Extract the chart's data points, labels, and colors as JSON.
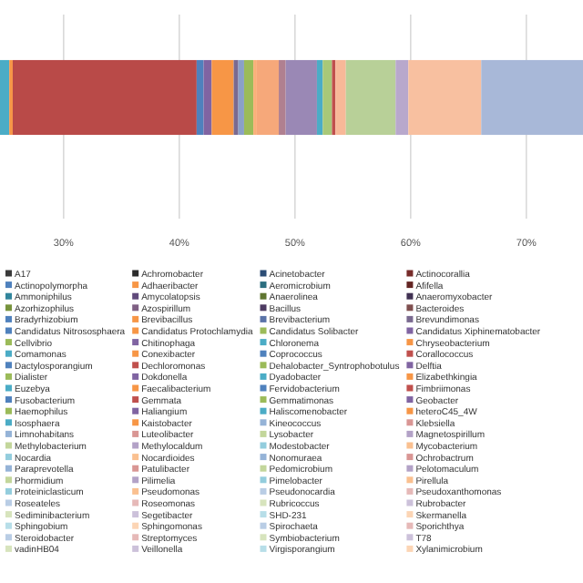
{
  "chart_data": {
    "type": "bar",
    "orientation": "horizontal",
    "categories": [
      null
    ],
    "xlim": [
      24.5,
      74.9
    ],
    "xticks": [
      {
        "value": 30,
        "label": "30%"
      },
      {
        "value": 40,
        "label": "40%"
      },
      {
        "value": 50,
        "label": "50%"
      },
      {
        "value": 60,
        "label": "60%"
      },
      {
        "value": 70,
        "label": "70%"
      }
    ],
    "grid": "x",
    "legend": "bottom",
    "tick_labels": "x",
    "series": [
      {
        "color": "#4bacc6",
        "values": [
          0.8
        ],
        "base": [
          24.5
        ]
      },
      {
        "color": "#f79646",
        "values": [
          0.3
        ],
        "base": [
          25.3
        ]
      },
      {
        "color": "#b94a48",
        "values": [
          15.9
        ],
        "base": [
          25.6
        ]
      },
      {
        "color": "#4f81bd",
        "values": [
          0.6
        ],
        "base": [
          41.5
        ]
      },
      {
        "color": "#8064a2",
        "values": [
          0.7
        ],
        "base": [
          42.1
        ]
      },
      {
        "color": "#f79646",
        "values": [
          1.9
        ],
        "base": [
          42.8
        ]
      },
      {
        "color": "#7a6a90",
        "values": [
          0.4
        ],
        "base": [
          44.7
        ]
      },
      {
        "color": "#8aa0c8",
        "values": [
          0.5
        ],
        "base": [
          45.1
        ]
      },
      {
        "color": "#9bbb59",
        "values": [
          0.8
        ],
        "base": [
          45.6
        ]
      },
      {
        "color": "#f9b07a",
        "values": [
          0.3
        ],
        "base": [
          46.4
        ]
      },
      {
        "color": "#f6a87a",
        "values": [
          1.9
        ],
        "base": [
          46.7
        ]
      },
      {
        "color": "#b08090",
        "values": [
          0.6
        ],
        "base": [
          48.6
        ]
      },
      {
        "color": "#9a88b5",
        "values": [
          2.7
        ],
        "base": [
          49.2
        ]
      },
      {
        "color": "#4bacc6",
        "values": [
          0.5
        ],
        "base": [
          51.9
        ]
      },
      {
        "color": "#a8c878",
        "values": [
          0.8
        ],
        "base": [
          52.4
        ]
      },
      {
        "color": "#c0504d",
        "values": [
          0.3
        ],
        "base": [
          53.2
        ]
      },
      {
        "color": "#f8b898",
        "values": [
          0.9
        ],
        "base": [
          53.5
        ]
      },
      {
        "color": "#b8d098",
        "values": [
          4.3
        ],
        "base": [
          54.4
        ]
      },
      {
        "color": "#b8a8cc",
        "values": [
          1.1
        ],
        "base": [
          58.7
        ]
      },
      {
        "color": "#f8c0a0",
        "values": [
          6.3
        ],
        "base": [
          59.8
        ]
      },
      {
        "color": "#a8b8d8",
        "values": [
          8.8
        ],
        "base": [
          66.1
        ]
      },
      {
        "name": "A17",
        "color": "#3a3a3a",
        "values": [
          null
        ]
      },
      {
        "name": "Achromobacter",
        "color": "#2c2c2c",
        "values": [
          null
        ]
      },
      {
        "name": "Acinetobacter",
        "color": "#2c4d75",
        "values": [
          null
        ]
      },
      {
        "name": "Actinocorallia",
        "color": "#772c2a",
        "values": [
          null
        ]
      },
      {
        "name": "Actinopolymorpha",
        "color": "#4f81bd",
        "values": [
          null
        ]
      },
      {
        "name": "Adhaeribacter",
        "color": "#f79646",
        "values": [
          null
        ]
      },
      {
        "name": "Aeromicrobium",
        "color": "#2c6f80",
        "values": [
          null
        ]
      },
      {
        "name": "Afifella",
        "color": "#632523",
        "values": [
          null
        ]
      },
      {
        "name": "Ammoniphilus",
        "color": "#31859c",
        "values": [
          null
        ]
      },
      {
        "name": "Amycolatopsis",
        "color": "#604a7b",
        "values": [
          null
        ]
      },
      {
        "name": "Anaerolinea",
        "color": "#5f7530",
        "values": [
          null
        ]
      },
      {
        "name": "Anaeromyxobacter",
        "color": "#403152",
        "values": [
          null
        ]
      },
      {
        "name": "Azorhizophilus",
        "color": "#77933c",
        "values": [
          null
        ]
      },
      {
        "name": "Azospirillum",
        "color": "#7f6084",
        "values": [
          null
        ]
      },
      {
        "name": "Bacillus",
        "color": "#4d3b62",
        "values": [
          null
        ]
      },
      {
        "name": "Bacteroides",
        "color": "#7f4f4f",
        "values": [
          null
        ]
      },
      {
        "name": "Bradyrhizobium",
        "color": "#4f81bd",
        "values": [
          null
        ]
      },
      {
        "name": "Brevibacillus",
        "color": "#f79646",
        "values": [
          null
        ]
      },
      {
        "name": "Brevibacterium",
        "color": "#5a73a8",
        "values": [
          null
        ]
      },
      {
        "name": "Brevundimonas",
        "color": "#7a6a90",
        "values": [
          null
        ]
      },
      {
        "name": "Candidatus Nitrososphaera",
        "color": "#4f81bd",
        "values": [
          null
        ]
      },
      {
        "name": "Candidatus Protochlamydia",
        "color": "#f79646",
        "values": [
          null
        ]
      },
      {
        "name": "Candidatus Solibacter",
        "color": "#9bbb59",
        "values": [
          null
        ]
      },
      {
        "name": "Candidatus Xiphinematobacter",
        "color": "#8064a2",
        "values": [
          null
        ]
      },
      {
        "name": "Cellvibrio",
        "color": "#9bbb59",
        "values": [
          null
        ]
      },
      {
        "name": "Chitinophaga",
        "color": "#8064a2",
        "values": [
          null
        ]
      },
      {
        "name": "Chloronema",
        "color": "#4bacc6",
        "values": [
          null
        ]
      },
      {
        "name": "Chryseobacterium",
        "color": "#f79646",
        "values": [
          null
        ]
      },
      {
        "name": "Comamonas",
        "color": "#4bacc6",
        "values": [
          null
        ]
      },
      {
        "name": "Conexibacter",
        "color": "#f79646",
        "values": [
          null
        ]
      },
      {
        "name": "Coprococcus",
        "color": "#4f81bd",
        "values": [
          null
        ]
      },
      {
        "name": "Corallococcus",
        "color": "#c0504d",
        "values": [
          null
        ]
      },
      {
        "name": "Dactylosporangium",
        "color": "#4f81bd",
        "values": [
          null
        ]
      },
      {
        "name": "Dechloromonas",
        "color": "#c0504d",
        "values": [
          null
        ]
      },
      {
        "name": "Dehalobacter_Syntrophobotulus",
        "color": "#9bbb59",
        "values": [
          null
        ]
      },
      {
        "name": "Delftia",
        "color": "#8064a2",
        "values": [
          null
        ]
      },
      {
        "name": "Dialister",
        "color": "#9bbb59",
        "values": [
          null
        ]
      },
      {
        "name": "Dokdonella",
        "color": "#8064a2",
        "values": [
          null
        ]
      },
      {
        "name": "Dyadobacter",
        "color": "#4bacc6",
        "values": [
          null
        ]
      },
      {
        "name": "Elizabethkingia",
        "color": "#f79646",
        "values": [
          null
        ]
      },
      {
        "name": "Euzebya",
        "color": "#4bacc6",
        "values": [
          null
        ]
      },
      {
        "name": "Faecalibacterium",
        "color": "#f79646",
        "values": [
          null
        ]
      },
      {
        "name": "Fervidobacterium",
        "color": "#4f81bd",
        "values": [
          null
        ]
      },
      {
        "name": "Fimbriimonas",
        "color": "#c0504d",
        "values": [
          null
        ]
      },
      {
        "name": "Fusobacterium",
        "color": "#4f81bd",
        "values": [
          null
        ]
      },
      {
        "name": "Gemmata",
        "color": "#c0504d",
        "values": [
          null
        ]
      },
      {
        "name": "Gemmatimonas",
        "color": "#9bbb59",
        "values": [
          null
        ]
      },
      {
        "name": "Geobacter",
        "color": "#8064a2",
        "values": [
          null
        ]
      },
      {
        "name": "Haemophilus",
        "color": "#9bbb59",
        "values": [
          null
        ]
      },
      {
        "name": "Haliangium",
        "color": "#8064a2",
        "values": [
          null
        ]
      },
      {
        "name": "Haliscomenobacter",
        "color": "#4bacc6",
        "values": [
          null
        ]
      },
      {
        "name": "heteroC45_4W",
        "color": "#f79646",
        "values": [
          null
        ]
      },
      {
        "name": "Isosphaera",
        "color": "#4bacc6",
        "values": [
          null
        ]
      },
      {
        "name": "Kaistobacter",
        "color": "#f79646",
        "values": [
          null
        ]
      },
      {
        "name": "Kineococcus",
        "color": "#95b3d7",
        "values": [
          null
        ]
      },
      {
        "name": "Klebsiella",
        "color": "#d99694",
        "values": [
          null
        ]
      },
      {
        "name": "Limnohabitans",
        "color": "#95b3d7",
        "values": [
          null
        ]
      },
      {
        "name": "Luteolibacter",
        "color": "#d99694",
        "values": [
          null
        ]
      },
      {
        "name": "Lysobacter",
        "color": "#c3d69b",
        "values": [
          null
        ]
      },
      {
        "name": "Magnetospirillum",
        "color": "#b3a2c7",
        "values": [
          null
        ]
      },
      {
        "name": "Methylobacterium",
        "color": "#c3d69b",
        "values": [
          null
        ]
      },
      {
        "name": "Methylocaldum",
        "color": "#b3a2c7",
        "values": [
          null
        ]
      },
      {
        "name": "Modestobacter",
        "color": "#93cddd",
        "values": [
          null
        ]
      },
      {
        "name": "Mycobacterium",
        "color": "#fac090",
        "values": [
          null
        ]
      },
      {
        "name": "Nocardia",
        "color": "#93cddd",
        "values": [
          null
        ]
      },
      {
        "name": "Nocardioides",
        "color": "#fac090",
        "values": [
          null
        ]
      },
      {
        "name": "Nonomuraea",
        "color": "#95b3d7",
        "values": [
          null
        ]
      },
      {
        "name": "Ochrobactrum",
        "color": "#d99694",
        "values": [
          null
        ]
      },
      {
        "name": "Paraprevotella",
        "color": "#95b3d7",
        "values": [
          null
        ]
      },
      {
        "name": "Patulibacter",
        "color": "#d99694",
        "values": [
          null
        ]
      },
      {
        "name": "Pedomicrobium",
        "color": "#c3d69b",
        "values": [
          null
        ]
      },
      {
        "name": "Pelotomaculum",
        "color": "#b3a2c7",
        "values": [
          null
        ]
      },
      {
        "name": "Phormidium",
        "color": "#c3d69b",
        "values": [
          null
        ]
      },
      {
        "name": "Pilimelia",
        "color": "#b3a2c7",
        "values": [
          null
        ]
      },
      {
        "name": "Pimelobacter",
        "color": "#93cddd",
        "values": [
          null
        ]
      },
      {
        "name": "Pirellula",
        "color": "#fac090",
        "values": [
          null
        ]
      },
      {
        "name": "Proteiniclasticum",
        "color": "#93cddd",
        "values": [
          null
        ]
      },
      {
        "name": "Pseudomonas",
        "color": "#fac090",
        "values": [
          null
        ]
      },
      {
        "name": "Pseudonocardia",
        "color": "#b9cde5",
        "values": [
          null
        ]
      },
      {
        "name": "Pseudoxanthomonas",
        "color": "#e6b9b8",
        "values": [
          null
        ]
      },
      {
        "name": "Roseateles",
        "color": "#b9cde5",
        "values": [
          null
        ]
      },
      {
        "name": "Roseomonas",
        "color": "#e6b9b8",
        "values": [
          null
        ]
      },
      {
        "name": "Rubricoccus",
        "color": "#d7e4bd",
        "values": [
          null
        ]
      },
      {
        "name": "Rubrobacter",
        "color": "#ccc1da",
        "values": [
          null
        ]
      },
      {
        "name": "Sediminibacterium",
        "color": "#d7e4bd",
        "values": [
          null
        ]
      },
      {
        "name": "Segetibacter",
        "color": "#ccc1da",
        "values": [
          null
        ]
      },
      {
        "name": "SHD-231",
        "color": "#b7dee8",
        "values": [
          null
        ]
      },
      {
        "name": "Skermanella",
        "color": "#fcd5b5",
        "values": [
          null
        ]
      },
      {
        "name": "Sphingobium",
        "color": "#b7dee8",
        "values": [
          null
        ]
      },
      {
        "name": "Sphingomonas",
        "color": "#fcd5b5",
        "values": [
          null
        ]
      },
      {
        "name": "Spirochaeta",
        "color": "#b9cde5",
        "values": [
          null
        ]
      },
      {
        "name": "Sporichthya",
        "color": "#e6b9b8",
        "values": [
          null
        ]
      },
      {
        "name": "Steroidobacter",
        "color": "#b9cde5",
        "values": [
          null
        ]
      },
      {
        "name": "Streptomyces",
        "color": "#e6b9b8",
        "values": [
          null
        ]
      },
      {
        "name": "Symbiobacterium",
        "color": "#d7e4bd",
        "values": [
          null
        ]
      },
      {
        "name": "T78",
        "color": "#ccc1da",
        "values": [
          null
        ]
      },
      {
        "name": "vadinHB04",
        "color": "#d7e4bd",
        "values": [
          null
        ]
      },
      {
        "name": "Veillonella",
        "color": "#ccc1da",
        "values": [
          null
        ]
      },
      {
        "name": "Virgisporangium",
        "color": "#b7dee8",
        "values": [
          null
        ]
      },
      {
        "name": "Xylanimicrobium",
        "color": "#fcd5b5",
        "values": [
          null
        ]
      }
    ]
  }
}
